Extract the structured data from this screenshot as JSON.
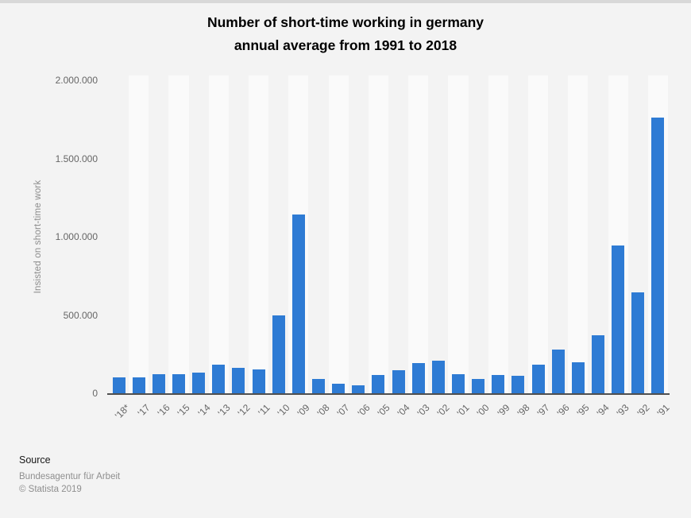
{
  "title": {
    "line1": "Number of short-time working in germany",
    "line2": "annual average from 1991 to 2018"
  },
  "chart_data": {
    "type": "bar",
    "title": "Number of short-time working in germany annual average from 1991 to 2018",
    "xlabel": "",
    "ylabel": "Insisted on short-time work",
    "categories": [
      "'18*",
      "'17",
      "'16",
      "'15",
      "'14",
      "'13",
      "'12",
      "'11",
      "'10",
      "'09",
      "'08",
      "'07",
      "'06",
      "'05",
      "'04",
      "'03",
      "'02",
      "'01",
      "'00",
      "'99",
      "'98",
      "'97",
      "'96",
      "'95",
      "'94",
      "'93",
      "'92",
      "'91"
    ],
    "values": [
      102000,
      100000,
      122000,
      120000,
      130000,
      183000,
      165000,
      152000,
      497000,
      1144000,
      93000,
      59000,
      52000,
      118000,
      145000,
      193000,
      207000,
      121000,
      90000,
      116000,
      110000,
      184000,
      278000,
      199000,
      373000,
      946000,
      646000,
      1761000
    ],
    "ylim": [
      0,
      2000000
    ],
    "yticks": [
      0,
      500000,
      1000000,
      1500000,
      2000000
    ],
    "ytick_labels": [
      "0",
      "500.000",
      "1.000.000",
      "1.500.000",
      "2.000.000"
    ],
    "grid": true,
    "legend": false,
    "bar_color": "#2e7bd4",
    "band_colors": [
      "#f3f3f3",
      "#fafafa"
    ],
    "baseline_color": "#4f4f4f",
    "gridline_color": "#cfcfcf"
  },
  "source": {
    "heading": "Source",
    "name": "Bundesagentur für Arbeit",
    "copyright": "© Statista 2019"
  }
}
